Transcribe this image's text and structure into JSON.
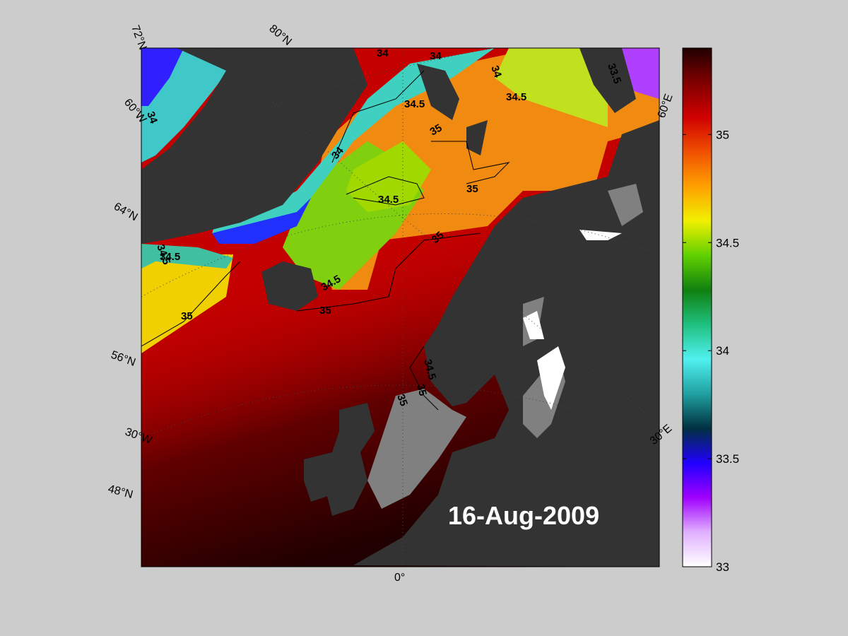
{
  "map": {
    "date": "16-Aug-2009",
    "graticule_labels": [
      "72°N",
      "80°N",
      "60°W",
      "64°N",
      "56°N",
      "30°W",
      "48°N",
      "0°",
      "30°E",
      "60°E"
    ],
    "contour_labels": [
      "34",
      "34",
      "34",
      "34",
      "34.5",
      "34.5",
      "35",
      "34.5",
      "35",
      "35",
      "34.5",
      "34.5",
      "35",
      "34.5",
      "35",
      "34.5",
      "35",
      "35",
      "33.5",
      "34"
    ]
  },
  "colorbar": {
    "lim": [
      33,
      35.4
    ],
    "ticks": [
      33,
      33.5,
      34,
      34.5,
      35
    ],
    "colormap": [
      "#ffffff",
      "#e0b0ff",
      "#a000ff",
      "#2000ff",
      "#003040",
      "#20a0a0",
      "#50f0f0",
      "#20c080",
      "#108010",
      "#60d000",
      "#f0f000",
      "#ffa000",
      "#f05000",
      "#d00000",
      "#800000",
      "#200000"
    ]
  }
}
